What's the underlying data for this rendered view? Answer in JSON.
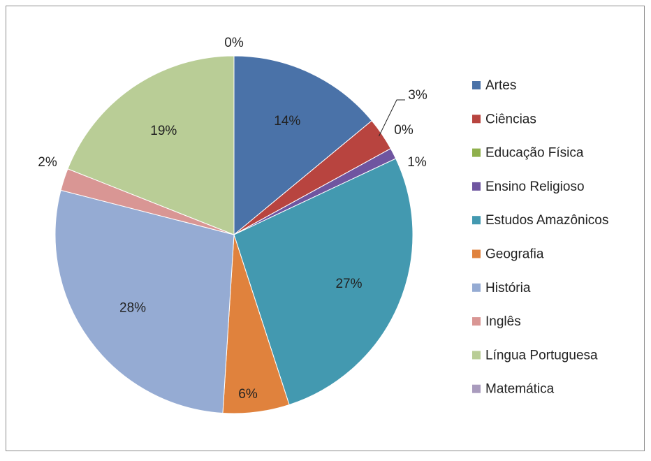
{
  "chart_data": {
    "type": "pie",
    "categories": [
      "Artes",
      "Ciências",
      "Educação Física",
      "Ensino Religioso",
      "Estudos Amazônicos",
      "Geografia",
      "História",
      "Inglês",
      "Língua Portuguesa",
      "Matemática"
    ],
    "values": [
      14,
      3,
      0,
      1,
      27,
      6,
      28,
      2,
      19,
      0
    ],
    "value_labels": [
      "14%",
      "3%",
      "0%",
      "1%",
      "27%",
      "6%",
      "28%",
      "2%",
      "19%",
      "0%"
    ],
    "colors": [
      "#4a72a8",
      "#b8443f",
      "#8fb04c",
      "#6f55a0",
      "#4399b0",
      "#e0823d",
      "#95abd3",
      "#d99694",
      "#b9cd96",
      "#a99bbd"
    ],
    "legend": "right"
  }
}
